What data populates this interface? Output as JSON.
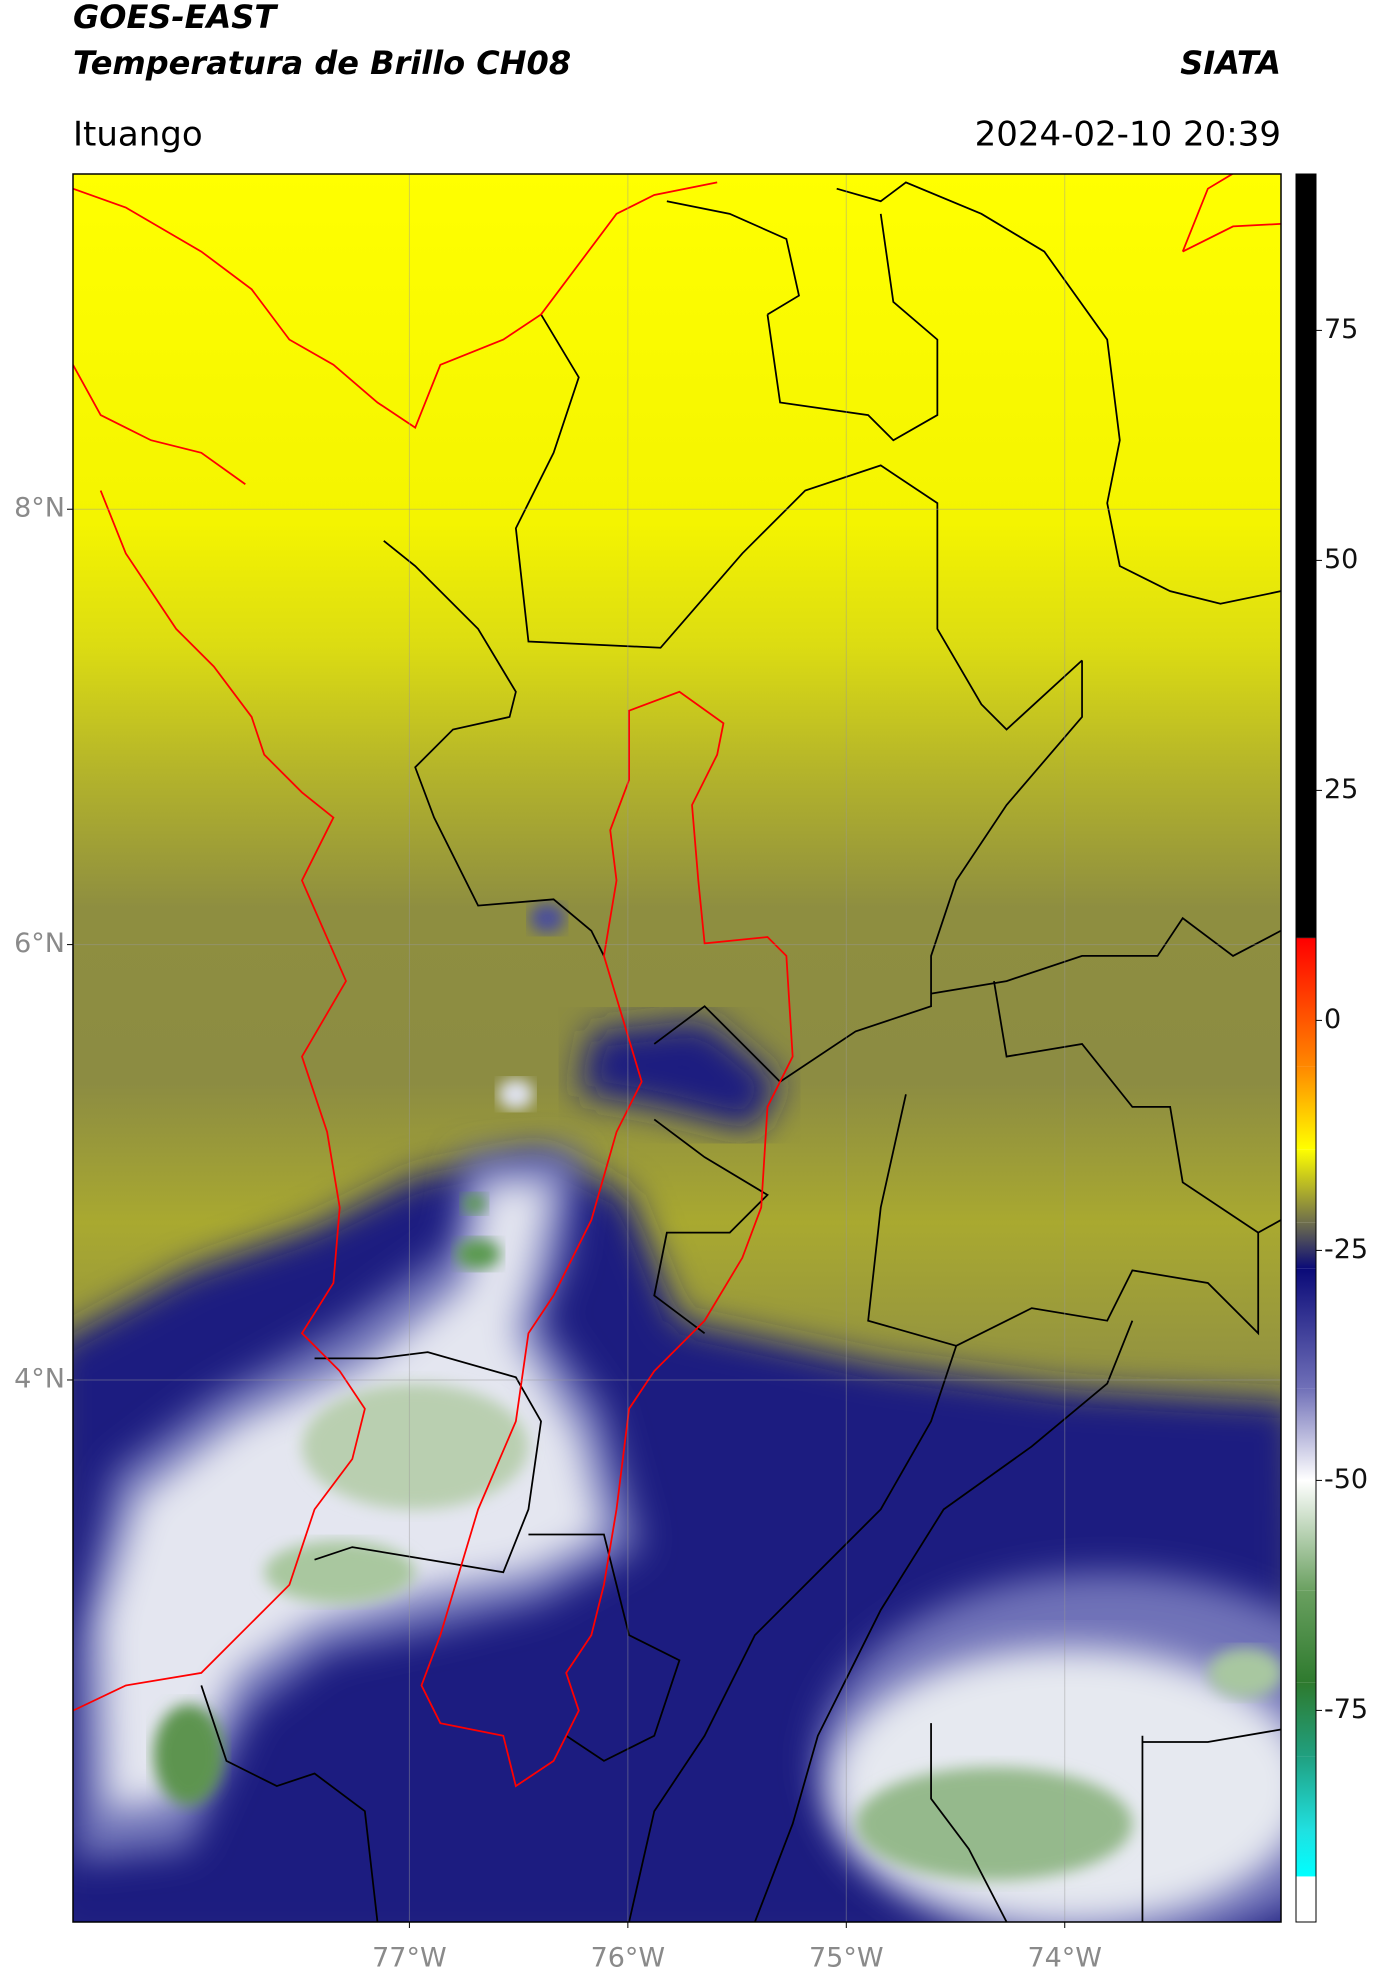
{
  "header": {
    "title": "GOES-EAST",
    "subtitle": "Temperatura de Brillo CH08",
    "brand": "SIATA",
    "region": "Ituango",
    "datetime": "2024-02-10 20:39"
  },
  "map": {
    "xlim": [
      -78.54,
      -73.01
    ],
    "ylim": [
      1.51,
      9.54
    ],
    "xticks": [
      {
        "value": -77,
        "label": "77°W"
      },
      {
        "value": -76,
        "label": "76°W"
      },
      {
        "value": -75,
        "label": "75°W"
      },
      {
        "value": -74,
        "label": "74°W"
      }
    ],
    "yticks": [
      {
        "value": 8,
        "label": "8°N"
      },
      {
        "value": 6,
        "label": "6°N"
      },
      {
        "value": 4,
        "label": "4°N"
      }
    ],
    "grid": true
  },
  "colorbar": {
    "ylim": [
      -98,
      92
    ],
    "yticks": [
      75,
      50,
      25,
      0,
      -25,
      -50,
      -75
    ],
    "colormap": [
      {
        "value": 92,
        "color": "#000000"
      },
      {
        "value": 9,
        "color": "#000000"
      },
      {
        "value": 8.9,
        "color": "#ff0000"
      },
      {
        "value": -5,
        "color": "#ff8800"
      },
      {
        "value": -14,
        "color": "#ffff00"
      },
      {
        "value": -22,
        "color": "#6e6e4c"
      },
      {
        "value": -27,
        "color": "#0a0a78"
      },
      {
        "value": -40,
        "color": "#7070b8"
      },
      {
        "value": -50,
        "color": "#ffffff"
      },
      {
        "value": -62,
        "color": "#6aa060"
      },
      {
        "value": -72,
        "color": "#2e7a2e"
      },
      {
        "value": -80,
        "color": "#20a080"
      },
      {
        "value": -88,
        "color": "#20e0e0"
      },
      {
        "value": -93,
        "color": "#00ffff"
      },
      {
        "value": -93.1,
        "color": "#ffffff"
      },
      {
        "value": -98,
        "color": "#ffffff"
      }
    ]
  }
}
